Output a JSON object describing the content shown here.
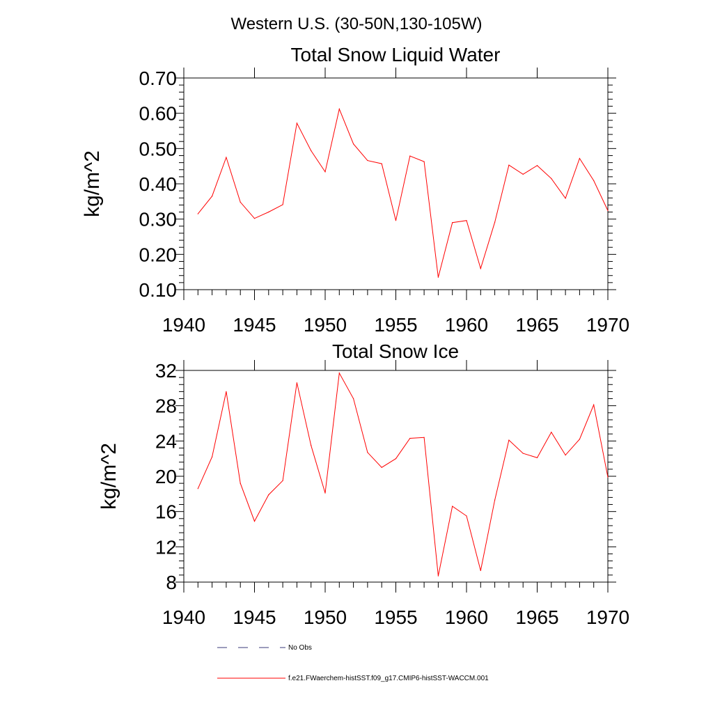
{
  "figure": {
    "suptitle": "Western U.S. (30-50N,130-105W)"
  },
  "chart_data": [
    {
      "type": "line",
      "title": "Total Snow Liquid Water",
      "ylabel": "kg/m^2",
      "xlabel": "",
      "xlim": [
        1940,
        1970
      ],
      "ylim": [
        0.1,
        0.7
      ],
      "x_ticks": [
        1940,
        1945,
        1950,
        1955,
        1960,
        1965,
        1970
      ],
      "y_ticks": [
        "0.10",
        "0.20",
        "0.30",
        "0.40",
        "0.50",
        "0.60",
        "0.70"
      ],
      "y_tick_values": [
        0.1,
        0.2,
        0.3,
        0.4,
        0.5,
        0.6,
        0.7
      ],
      "grid": false,
      "series": [
        {
          "color": "#ff0000",
          "x": [
            1941,
            1942,
            1943,
            1944,
            1945,
            1946,
            1947,
            1948,
            1949,
            1950,
            1951,
            1952,
            1953,
            1954,
            1955,
            1956,
            1957,
            1958,
            1959,
            1960,
            1961,
            1962,
            1963,
            1964,
            1965,
            1966,
            1967,
            1968,
            1969,
            1970
          ],
          "values": [
            0.315,
            0.365,
            0.475,
            0.348,
            0.302,
            0.32,
            0.341,
            0.572,
            0.494,
            0.434,
            0.612,
            0.513,
            0.466,
            0.457,
            0.296,
            0.479,
            0.463,
            0.135,
            0.29,
            0.296,
            0.16,
            0.291,
            0.453,
            0.427,
            0.452,
            0.415,
            0.359,
            0.472,
            0.409,
            0.324
          ]
        }
      ]
    },
    {
      "type": "line",
      "title": "Total Snow Ice",
      "ylabel": "kg/m^2",
      "xlabel": "",
      "xlim": [
        1940,
        1970
      ],
      "ylim": [
        8,
        32
      ],
      "x_ticks": [
        1940,
        1945,
        1950,
        1955,
        1960,
        1965,
        1970
      ],
      "y_ticks": [
        "8",
        "12",
        "16",
        "20",
        "24",
        "28",
        "32"
      ],
      "y_tick_values": [
        8,
        12,
        16,
        20,
        24,
        28,
        32
      ],
      "grid": false,
      "series": [
        {
          "color": "#ff0000",
          "x": [
            1941,
            1942,
            1943,
            1944,
            1945,
            1946,
            1947,
            1948,
            1949,
            1950,
            1951,
            1952,
            1953,
            1954,
            1955,
            1956,
            1957,
            1958,
            1959,
            1960,
            1961,
            1962,
            1963,
            1964,
            1965,
            1966,
            1967,
            1968,
            1969,
            1970
          ],
          "values": [
            18.6,
            22.2,
            29.6,
            19.2,
            14.9,
            17.9,
            19.5,
            30.6,
            23.5,
            18.1,
            31.7,
            28.8,
            22.7,
            21.0,
            22.0,
            24.3,
            24.4,
            8.7,
            16.6,
            15.5,
            9.3,
            17.3,
            24.1,
            22.6,
            22.1,
            25.0,
            22.4,
            24.2,
            28.1,
            19.9
          ]
        }
      ]
    }
  ],
  "legend": {
    "placement": "bottom-center",
    "items": [
      {
        "label": "No Obs",
        "color": "#3a3a7a",
        "style": "dashed"
      },
      {
        "label": "f.e21.FWaerchem-histSST.f09_g17.CMIP6-histSST-WACCM.001",
        "color": "#ff0000",
        "style": "solid"
      }
    ]
  }
}
